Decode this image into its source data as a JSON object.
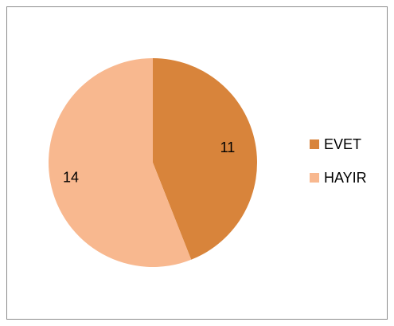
{
  "chart_data": {
    "type": "pie",
    "title": "",
    "categories": [
      "EVET",
      "HAYIR"
    ],
    "values": [
      11,
      14
    ],
    "colors": [
      "#D8843B",
      "#F8B88F"
    ],
    "data_labels": [
      "11",
      "14"
    ],
    "legend_placement": "right"
  },
  "legend": {
    "items": [
      {
        "label": "EVET",
        "color": "#D8843B"
      },
      {
        "label": "HAYIR",
        "color": "#F8B88F"
      }
    ]
  }
}
